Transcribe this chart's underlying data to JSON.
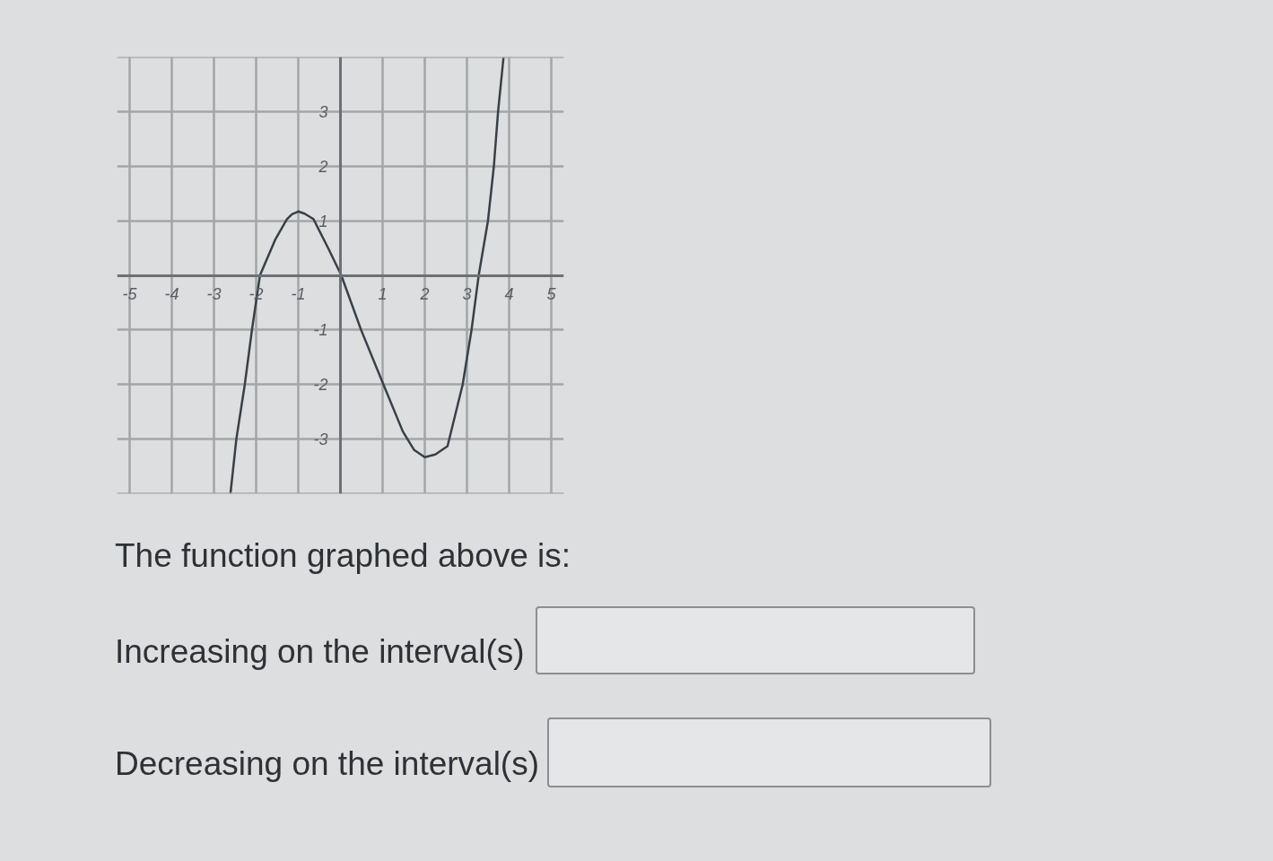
{
  "chart_data": {
    "type": "line",
    "x": [
      -2.61,
      -2.47,
      -2.27,
      -2.1,
      -1.91,
      -1.55,
      -1.27,
      -1.15,
      -1.0,
      -0.85,
      -0.64,
      -0.28,
      0.02,
      0.49,
      1.02,
      1.48,
      1.75,
      2.0,
      2.25,
      2.54,
      2.9,
      3.11,
      3.28,
      3.5,
      3.64,
      3.74,
      3.87
    ],
    "values": [
      -4.0,
      -3.0,
      -2.0,
      -1.0,
      0.0,
      0.65,
      1.03,
      1.12,
      1.17,
      1.13,
      1.03,
      0.48,
      0.0,
      -1.0,
      -2.0,
      -2.86,
      -3.2,
      -3.33,
      -3.28,
      -3.13,
      -2.0,
      -1.0,
      0.0,
      1.0,
      2.0,
      3.0,
      4.0
    ],
    "color": "#3a3f48",
    "xlim": [
      -5.3,
      5.3
    ],
    "ylim": [
      -4,
      4
    ],
    "xticks": [
      -5,
      -4,
      -3,
      -2,
      -1,
      1,
      2,
      3,
      4,
      5
    ],
    "yticks": [
      {
        "value": -4,
        "label": null
      },
      -3,
      -2,
      -1,
      1,
      2,
      3,
      {
        "value": 4,
        "label": null
      }
    ],
    "grid": true,
    "marker": "none",
    "line_style": "solid",
    "annotations": [
      "The function graphed above is:",
      "Increasing on the interval(s)",
      "Decreasing on the interval(s)"
    ]
  }
}
